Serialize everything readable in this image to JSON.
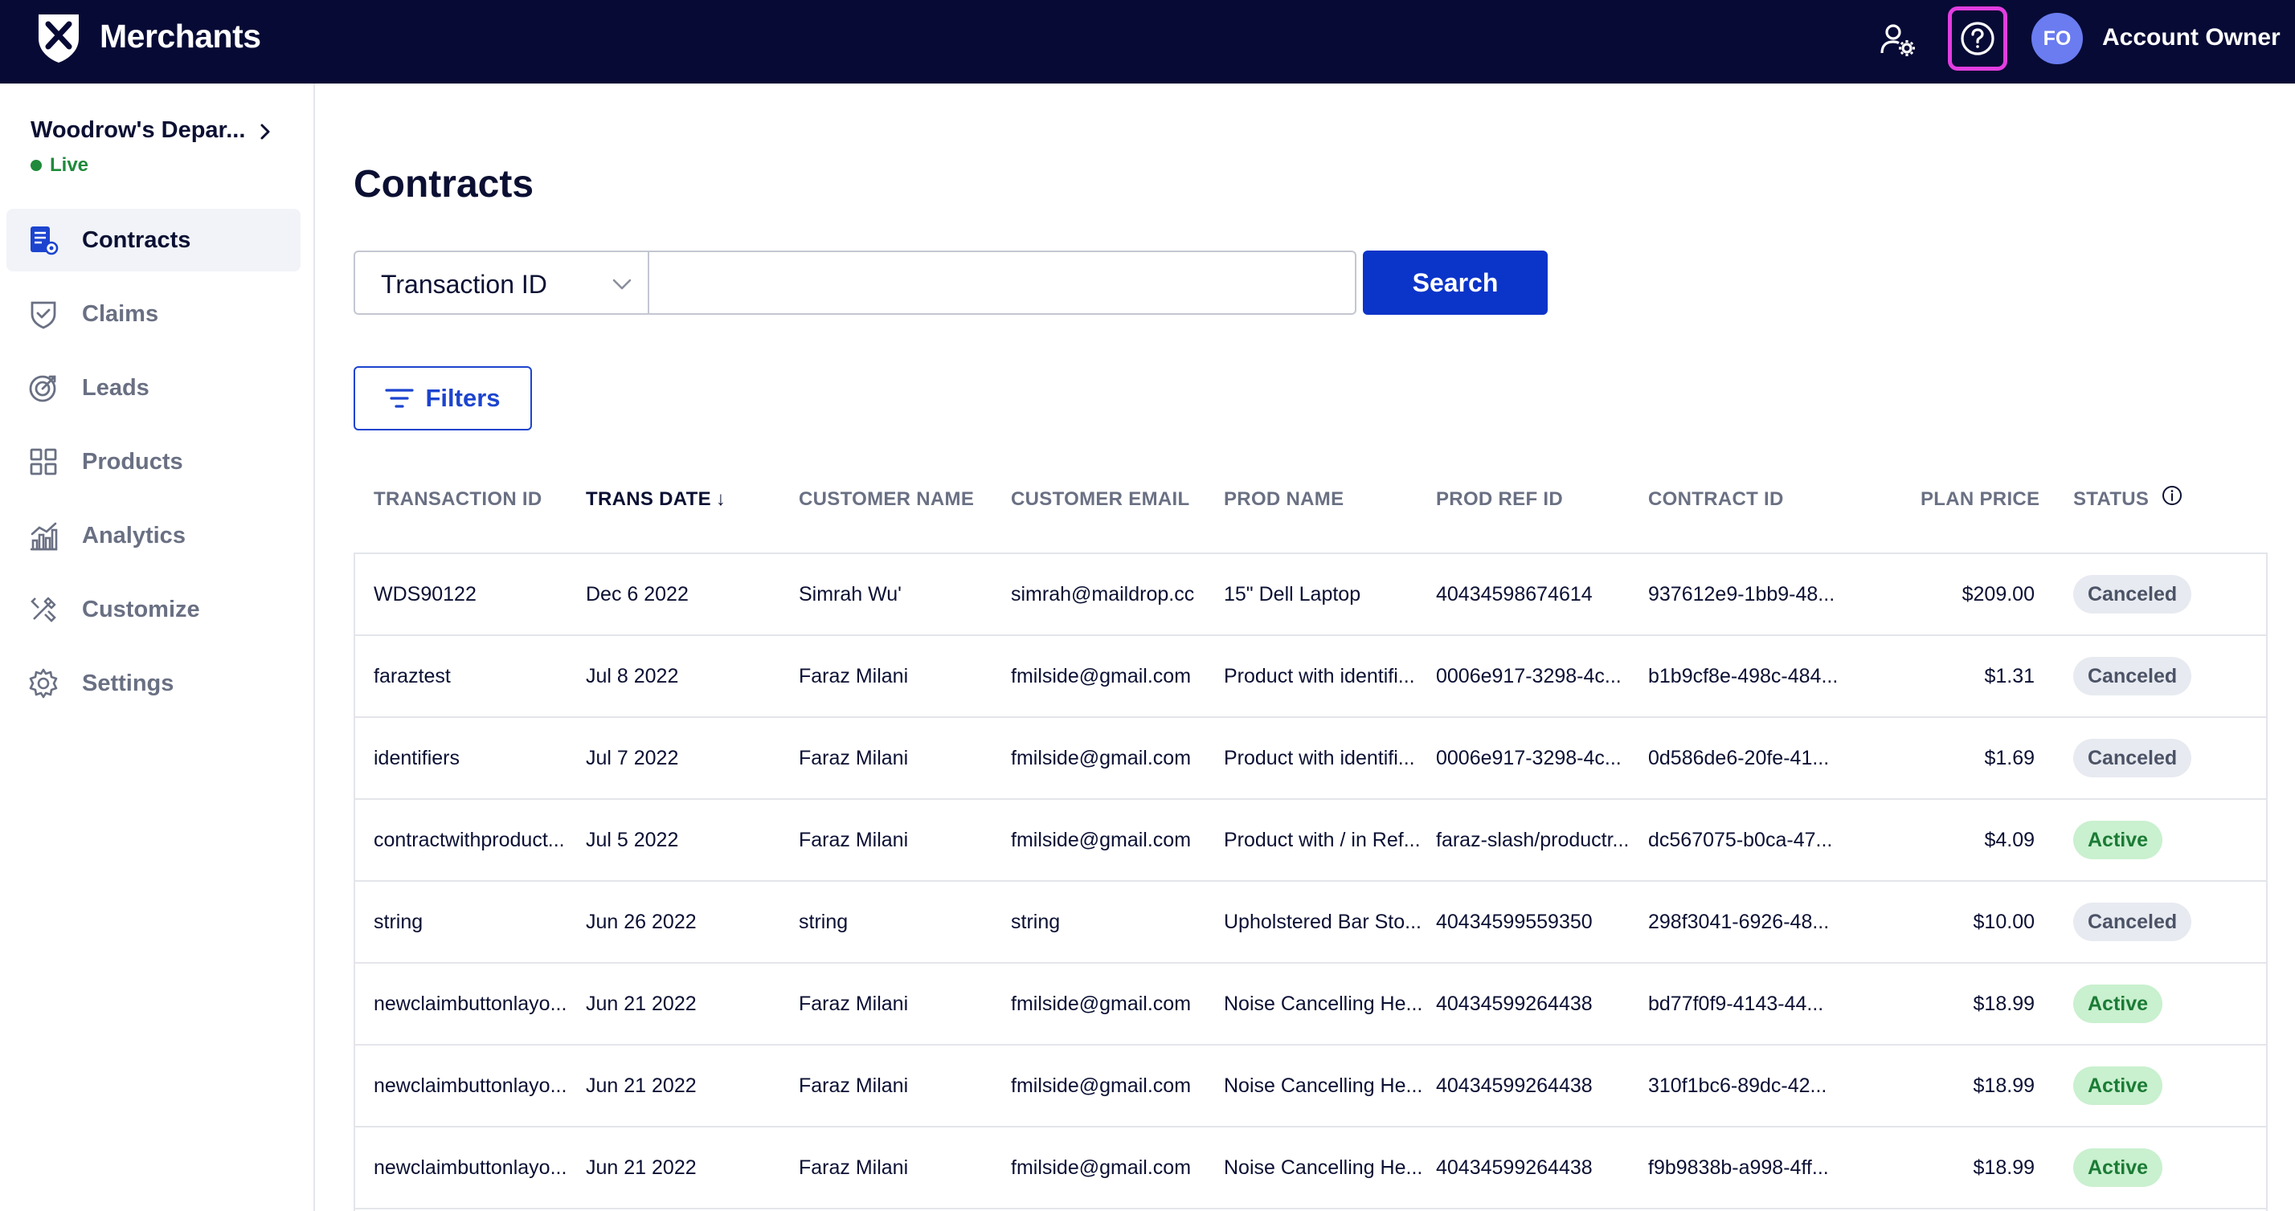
{
  "header": {
    "brand": "Merchants",
    "account_initials": "FO",
    "account_name": "Account Owner",
    "icons": [
      "user-settings-icon",
      "help-icon"
    ]
  },
  "sidebar": {
    "org_name": "Woodrow's Depar...",
    "status": "Live",
    "items": [
      {
        "label": "Contracts",
        "icon": "contracts-icon",
        "active": true
      },
      {
        "label": "Claims",
        "icon": "shield-icon"
      },
      {
        "label": "Leads",
        "icon": "target-icon"
      },
      {
        "label": "Products",
        "icon": "grid-icon"
      },
      {
        "label": "Analytics",
        "icon": "bar-chart-icon"
      },
      {
        "label": "Customize",
        "icon": "tools-icon"
      },
      {
        "label": "Settings",
        "icon": "gear-icon"
      }
    ]
  },
  "main": {
    "title": "Contracts",
    "search": {
      "field_selected": "Transaction ID",
      "value": "",
      "placeholder": "",
      "button_label": "Search"
    },
    "filters_label": "Filters",
    "table": {
      "columns": [
        "TRANSACTION ID",
        "TRANS DATE",
        "CUSTOMER NAME",
        "CUSTOMER EMAIL",
        "PROD NAME",
        "PROD REF ID",
        "CONTRACT ID",
        "PLAN PRICE",
        "STATUS"
      ],
      "sort_arrow": "↓",
      "rows": [
        [
          "WDS90122",
          "Dec 6 2022",
          "Simrah Wu'",
          "simrah@maildrop.cc",
          "15\" Dell Laptop",
          "40434598674614",
          "937612e9-1bb9-48...",
          "$209.00",
          "Canceled"
        ],
        [
          "faraztest",
          "Jul 8 2022",
          "Faraz Milani",
          "fmilside@gmail.com",
          "Product with identifi...",
          "0006e917-3298-4c...",
          "b1b9cf8e-498c-484...",
          "$1.31",
          "Canceled"
        ],
        [
          "identifiers",
          "Jul 7 2022",
          "Faraz Milani",
          "fmilside@gmail.com",
          "Product with identifi...",
          "0006e917-3298-4c...",
          "0d586de6-20fe-41...",
          "$1.69",
          "Canceled"
        ],
        [
          "contractwithproduct...",
          "Jul 5 2022",
          "Faraz Milani",
          "fmilside@gmail.com",
          "Product with / in Ref...",
          "faraz-slash/productr...",
          "dc567075-b0ca-47...",
          "$4.09",
          "Active"
        ],
        [
          "string",
          "Jun 26 2022",
          "string",
          "string",
          "Upholstered Bar Sto...",
          "40434599559350",
          "298f3041-6926-48...",
          "$10.00",
          "Canceled"
        ],
        [
          "newclaimbuttonlayo...",
          "Jun 21 2022",
          "Faraz Milani",
          "fmilside@gmail.com",
          "Noise Cancelling He...",
          "40434599264438",
          "bd77f0f9-4143-44...",
          "$18.99",
          "Active"
        ],
        [
          "newclaimbuttonlayo...",
          "Jun 21 2022",
          "Faraz Milani",
          "fmilside@gmail.com",
          "Noise Cancelling He...",
          "40434599264438",
          "310f1bc6-89dc-42...",
          "$18.99",
          "Active"
        ],
        [
          "newclaimbuttonlayo...",
          "Jun 21 2022",
          "Faraz Milani",
          "fmilside@gmail.com",
          "Noise Cancelling He...",
          "40434599264438",
          "f9b9838b-a998-4ff...",
          "$18.99",
          "Active"
        ]
      ]
    }
  },
  "colors": {
    "topbar": "#070a35",
    "primary": "#0b34c9",
    "help_highlight": "#e23ee0",
    "active_badge_bg": "#c9f0cf",
    "canceled_badge_bg": "#e7eaf0"
  }
}
